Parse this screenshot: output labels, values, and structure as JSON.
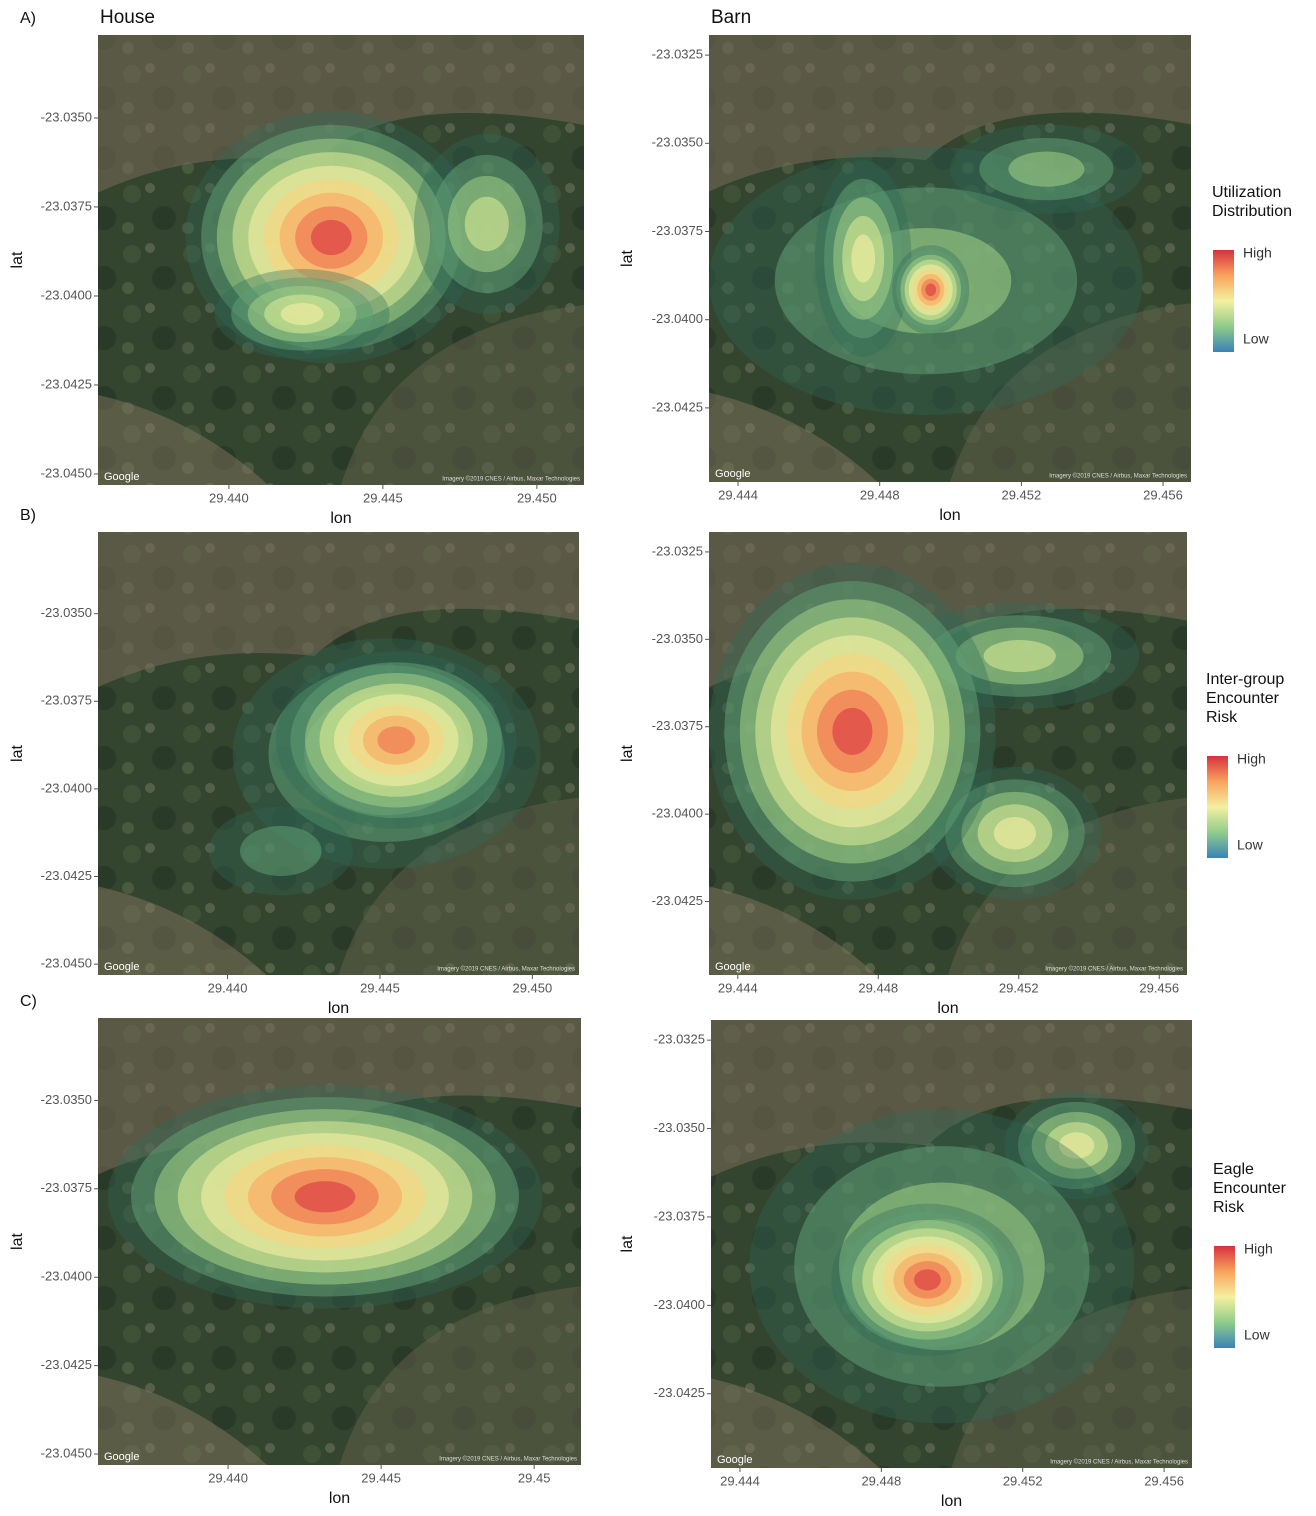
{
  "chart_data": [
    {
      "type": "heatmap",
      "panel": "A)",
      "title": "House",
      "xlabel": "lon",
      "ylabel": "lat",
      "xlim": [
        29.43575,
        29.45153
      ],
      "ylim": [
        -23.04531,
        -23.03267
      ],
      "xticks": [
        {
          "value": 29.44,
          "label": "29.440"
        },
        {
          "value": 29.445,
          "label": "29.445"
        },
        {
          "value": 29.45,
          "label": "29.450"
        }
      ],
      "yticks": [
        {
          "value": -23.035,
          "label": "-23.0350"
        },
        {
          "value": -23.0375,
          "label": "-23.0375"
        },
        {
          "value": -23.04,
          "label": "-23.0400"
        },
        {
          "value": -23.0425,
          "label": "-23.0425"
        },
        {
          "value": -23.045,
          "label": "-23.0450"
        }
      ],
      "attribution": "Google",
      "credit": "Imagery ©2019 CNES / Airbus, Maxar Technologies"
    },
    {
      "type": "heatmap",
      "title": "Barn",
      "xlabel": "lon",
      "ylabel": "lat",
      "xlim": [
        29.44318,
        29.45679
      ],
      "ylim": [
        -23.0446,
        -23.03193
      ],
      "xticks": [
        29.444,
        29.448,
        29.452,
        29.456
      ],
      "yticks": [
        {
          "value": -23.0325,
          "label": "-23.0325"
        },
        {
          "value": -23.035,
          "label": "-23.0350"
        },
        {
          "value": -23.0375,
          "label": "-23.0375"
        },
        {
          "value": -23.04,
          "label": "-23.0400"
        },
        {
          "value": -23.0425,
          "label": "-23.0425"
        }
      ],
      "legend": {
        "title": [
          "Utilization",
          "Distribution"
        ],
        "high": "High",
        "low": "Low"
      },
      "attribution": "Google",
      "credit": "Imagery ©2019 CNES / Airbus, Maxar Technologies"
    },
    {
      "type": "heatmap",
      "panel": "B)",
      "xlabel": "lon",
      "ylabel": "lat",
      "xlim": [
        29.43575,
        29.45153
      ],
      "ylim": [
        -23.04531,
        -23.03267
      ],
      "xticks": [
        {
          "value": 29.44,
          "label": "29.440"
        },
        {
          "value": 29.445,
          "label": "29.445"
        },
        {
          "value": 29.45,
          "label": "29.450"
        }
      ],
      "yticks": [
        {
          "value": -23.035,
          "label": "-23.0350"
        },
        {
          "value": -23.0375,
          "label": "-23.0375"
        },
        {
          "value": -23.04,
          "label": "-23.0400"
        },
        {
          "value": -23.0425,
          "label": "-23.0425"
        },
        {
          "value": -23.045,
          "label": "-23.0450"
        }
      ],
      "attribution": "Google",
      "credit": "Imagery ©2019 CNES / Airbus, Maxar Technologies"
    },
    {
      "type": "heatmap",
      "xlabel": "lon",
      "ylabel": "lat",
      "xlim": [
        29.44318,
        29.45679
      ],
      "ylim": [
        -23.0446,
        -23.03193
      ],
      "xticks": [
        29.444,
        29.448,
        29.452,
        29.456
      ],
      "yticks": [
        {
          "value": -23.0325,
          "label": "-23.0325"
        },
        {
          "value": -23.035,
          "label": "-23.0350"
        },
        {
          "value": -23.0375,
          "label": "-23.0375"
        },
        {
          "value": -23.04,
          "label": "-23.0400"
        },
        {
          "value": -23.0425,
          "label": "-23.0425"
        }
      ],
      "legend": {
        "title": [
          "Inter-group",
          "Encounter",
          "Risk"
        ],
        "high": "High",
        "low": "Low"
      },
      "attribution": "Google",
      "credit": "Imagery ©2019 CNES / Airbus, Maxar Technologies"
    },
    {
      "type": "heatmap",
      "panel": "C)",
      "xlabel": "lon",
      "ylabel": "lat",
      "xlim": [
        29.43575,
        29.45153
      ],
      "ylim": [
        -23.04531,
        -23.03267
      ],
      "xticks": [
        {
          "value": 29.44,
          "label": "29.440"
        },
        {
          "value": 29.445,
          "label": "29.445"
        },
        29.45
      ],
      "yticks": [
        {
          "value": -23.035,
          "label": "-23.0350"
        },
        {
          "value": -23.0375,
          "label": "-23.0375"
        },
        {
          "value": -23.04,
          "label": "-23.0400"
        },
        {
          "value": -23.0425,
          "label": "-23.0425"
        },
        {
          "value": -23.045,
          "label": "-23.0450"
        }
      ],
      "attribution": "Google",
      "credit": "Imagery ©2019 CNES / Airbus, Maxar Technologies"
    },
    {
      "type": "heatmap",
      "xlabel": "lon",
      "ylabel": "lat",
      "xlim": [
        29.44318,
        29.45679
      ],
      "ylim": [
        -23.0446,
        -23.03193
      ],
      "xticks": [
        29.444,
        29.448,
        29.452,
        29.456
      ],
      "yticks": [
        {
          "value": -23.0325,
          "label": "-23.0325"
        },
        {
          "value": -23.035,
          "label": "-23.0350"
        },
        {
          "value": -23.0375,
          "label": "-23.0375"
        },
        {
          "value": -23.04,
          "label": "-23.0400"
        },
        {
          "value": -23.0425,
          "label": "-23.0425"
        }
      ],
      "legend": {
        "title": [
          "Eagle",
          "Encounter",
          "Risk"
        ],
        "high": "High",
        "low": "Low"
      },
      "attribution": "Google",
      "credit": "Imagery ©2019 CNES / Airbus, Maxar Technologies"
    }
  ]
}
